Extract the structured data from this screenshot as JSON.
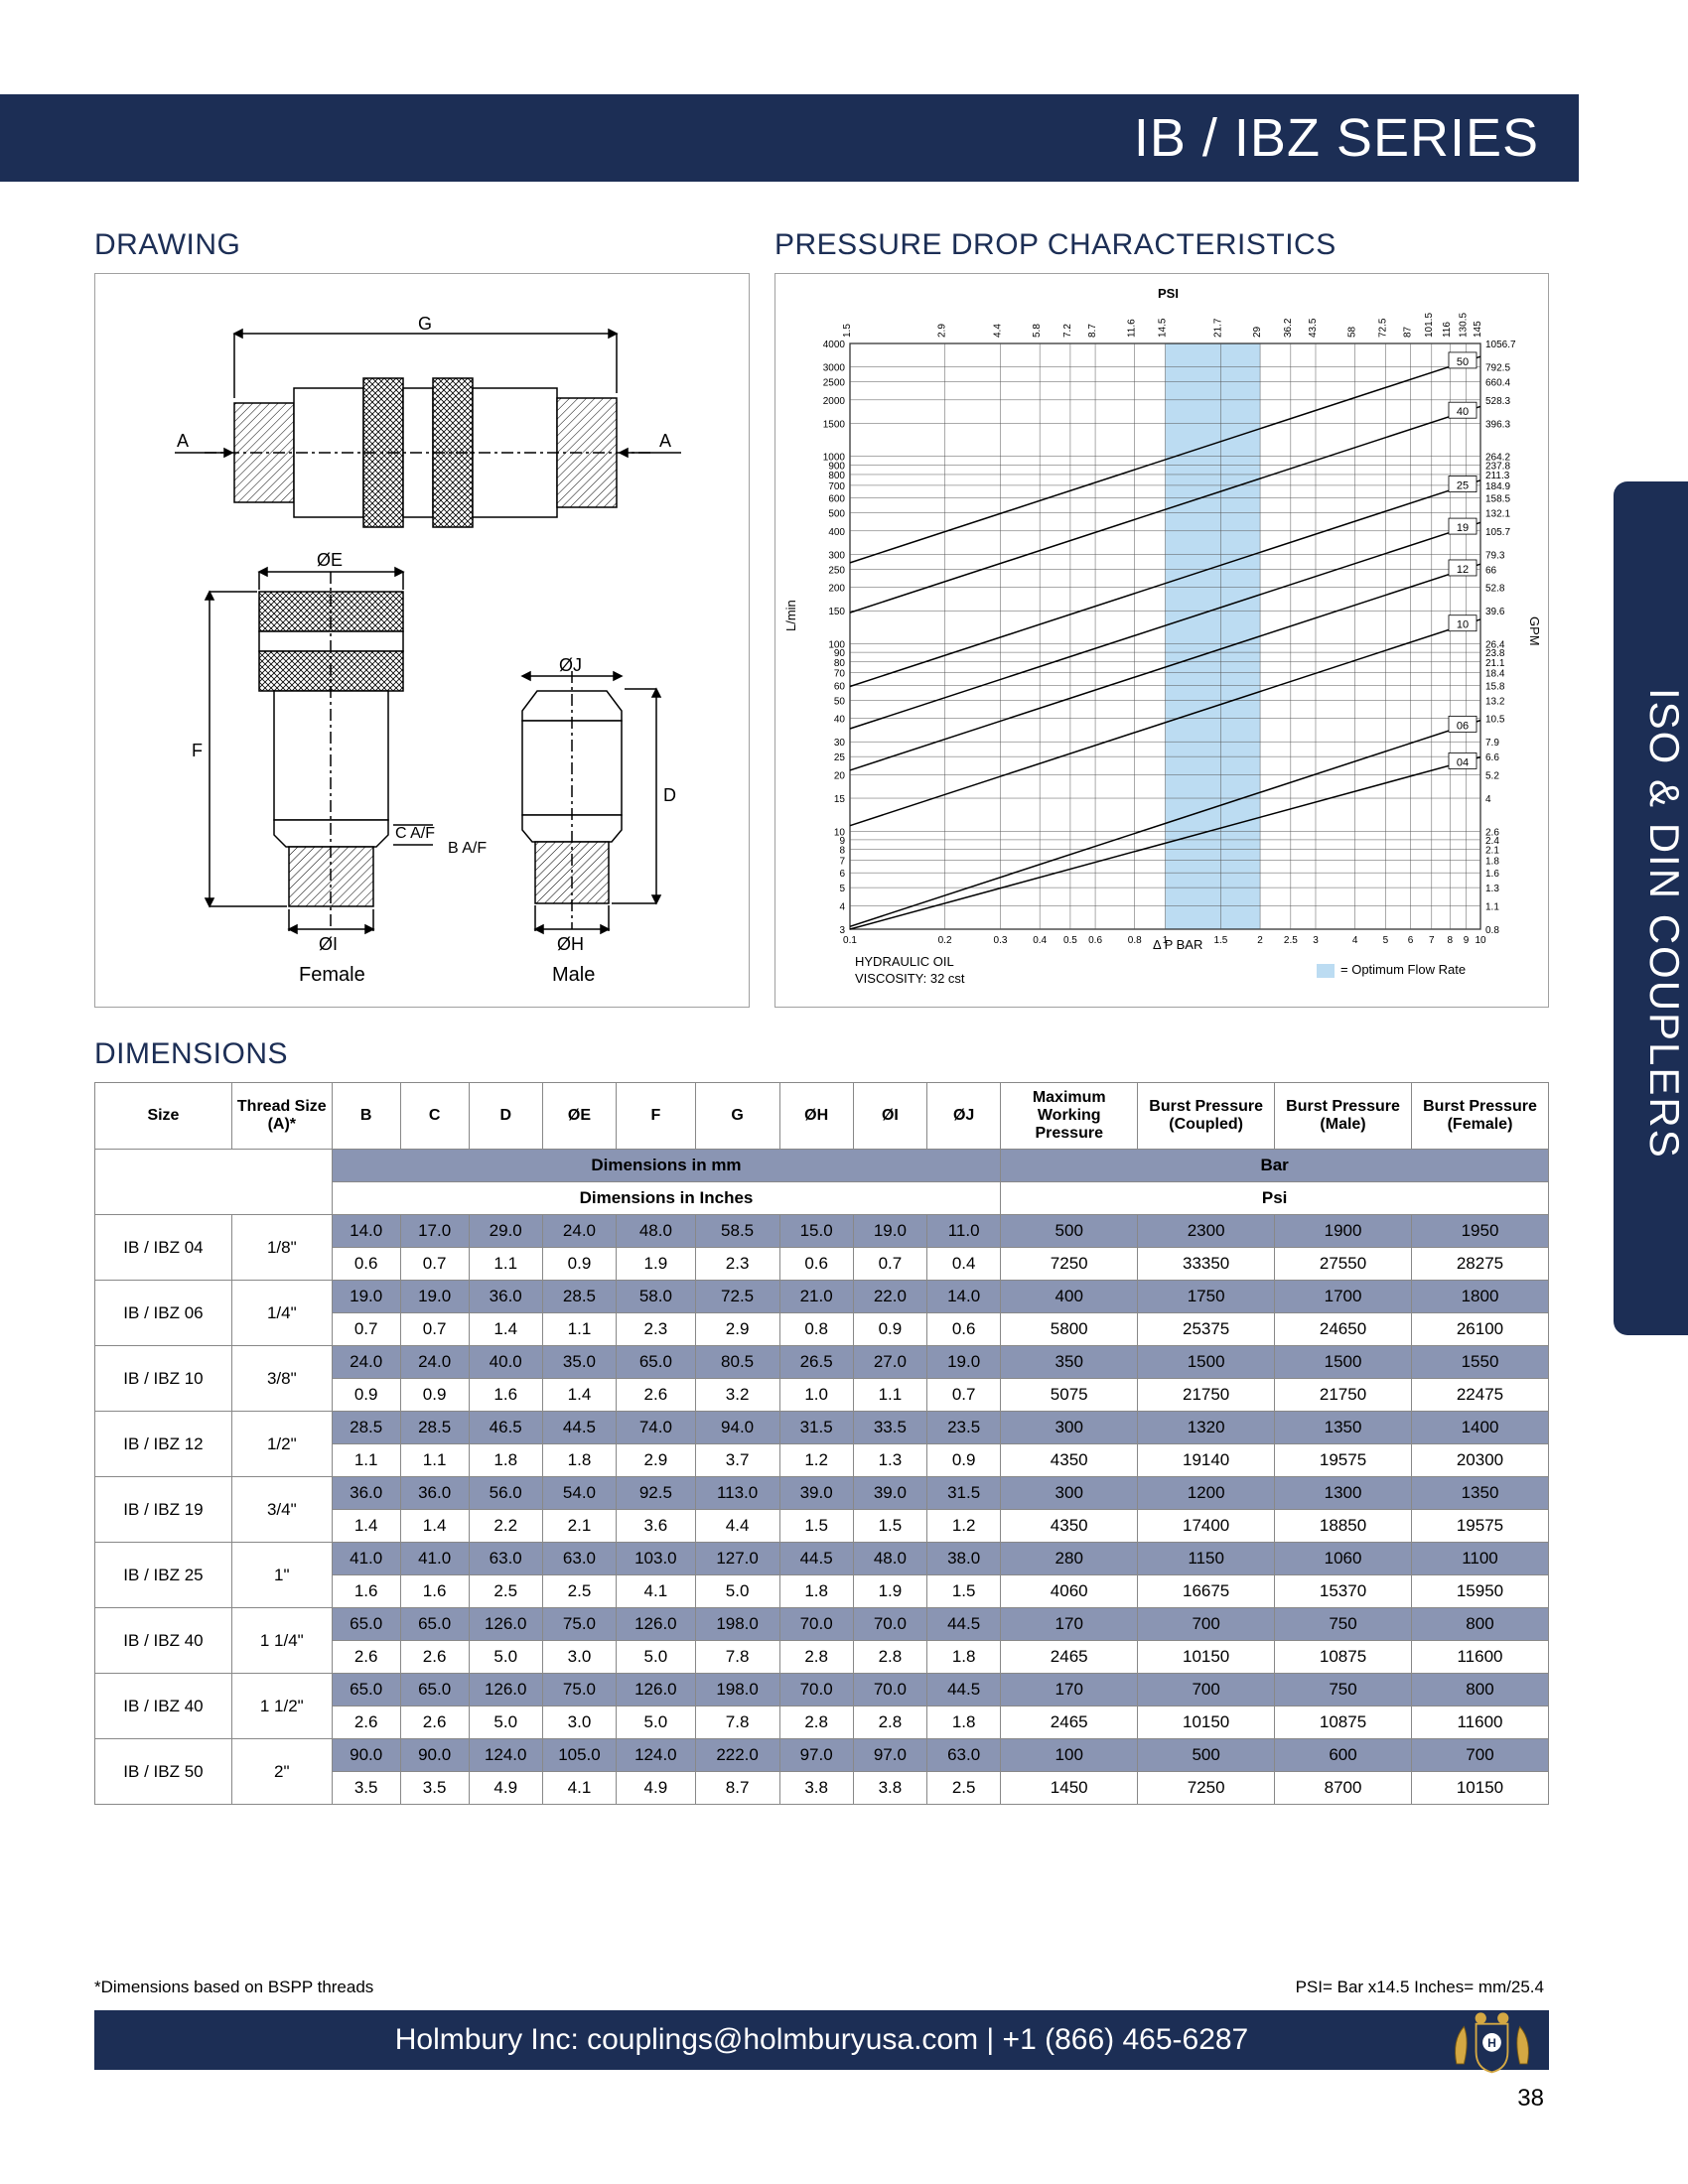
{
  "header": {
    "title": "IB / IBZ SERIES"
  },
  "side_tab": "ISO & DIN COUPLERS",
  "sections": {
    "drawing": "DRAWING",
    "chart": "PRESSURE DROP CHARACTERISTICS",
    "dimensions": "DIMENSIONS"
  },
  "drawing": {
    "labels": {
      "G": "G",
      "A_left": "A",
      "A_right": "A",
      "OE": "ØE",
      "OJ": "ØJ",
      "F": "F",
      "D": "D",
      "CAF": "C A/F",
      "BAF": "B A/F",
      "OI": "ØI",
      "OH": "ØH",
      "female": "Female",
      "male": "Male"
    }
  },
  "chart": {
    "psi_label": "PSI",
    "lmin_label": "L/min",
    "gpm_label": "GPM",
    "x_label": "Δ P  BAR",
    "note_line1": "HYDRAULIC OIL",
    "note_line2": "VISCOSITY: 32 cst",
    "legend": "= Optimum Flow Rate",
    "x_ticks": [
      "0.1",
      "0.2",
      "0.3",
      "0.4",
      "0.5",
      "0.6",
      "0.8",
      "1",
      "1.5",
      "2",
      "2.5",
      "3",
      "4",
      "5",
      "6",
      "7",
      "8",
      "9",
      "10"
    ],
    "y_left": [
      "4000",
      "3000",
      "2500",
      "2000",
      "1500",
      "1000",
      "900",
      "800",
      "700",
      "600",
      "500",
      "400",
      "300",
      "250",
      "200",
      "150",
      "100",
      "90",
      "80",
      "70",
      "60",
      "50",
      "40",
      "30",
      "25",
      "20",
      "15",
      "10",
      "9",
      "8",
      "7",
      "6",
      "5",
      "4",
      "3"
    ],
    "y_top": [
      "1.5",
      "2.9",
      "4.4",
      "5.8",
      "7.2",
      "8.7",
      "11.6",
      "14.5",
      "21.7",
      "29",
      "36.2",
      "43.5",
      "58",
      "72.5",
      "87",
      "101.5",
      "116",
      "130.5",
      "145"
    ],
    "y_right": [
      "1056.7",
      "792.5",
      "660.4",
      "528.3",
      "396.3",
      "264.2",
      "237.8",
      "211.3",
      "184.9",
      "158.5",
      "132.1",
      "105.7",
      "79.3",
      "66",
      "52.8",
      "39.6",
      "26.4",
      "23.8",
      "21.1",
      "18.4",
      "15.8",
      "13.2",
      "10.5",
      "7.9",
      "6.6",
      "5.2",
      "4",
      "2.6",
      "2.4",
      "2.1",
      "1.8",
      "1.6",
      "1.3",
      "1.1",
      "0.8"
    ],
    "line_labels": [
      "50",
      "40",
      "25",
      "19",
      "12",
      "10",
      "06",
      "04"
    ],
    "band_color": "#bcdcf2",
    "grid_color": "#555",
    "line_color": "#000"
  },
  "dimensions": {
    "columns": [
      "Size",
      "Thread Size (A)*",
      "B",
      "C",
      "D",
      "ØE",
      "F",
      "G",
      "ØH",
      "ØI",
      "ØJ",
      "Maximum Working Pressure",
      "Burst Pressure (Coupled)",
      "Burst Pressure (Male)",
      "Burst Pressure (Female)"
    ],
    "unit_row1_left": "Dimensions in mm",
    "unit_row1_right": "Bar",
    "unit_row2_left": "Dimensions in Inches",
    "unit_row2_right": "Psi",
    "rows": [
      {
        "size": "IB / IBZ 04",
        "thread": "1/8\"",
        "mm": [
          "14.0",
          "17.0",
          "29.0",
          "24.0",
          "48.0",
          "58.5",
          "15.0",
          "19.0",
          "11.0",
          "500",
          "2300",
          "1900",
          "1950"
        ],
        "in": [
          "0.6",
          "0.7",
          "1.1",
          "0.9",
          "1.9",
          "2.3",
          "0.6",
          "0.7",
          "0.4",
          "7250",
          "33350",
          "27550",
          "28275"
        ]
      },
      {
        "size": "IB / IBZ 06",
        "thread": "1/4\"",
        "mm": [
          "19.0",
          "19.0",
          "36.0",
          "28.5",
          "58.0",
          "72.5",
          "21.0",
          "22.0",
          "14.0",
          "400",
          "1750",
          "1700",
          "1800"
        ],
        "in": [
          "0.7",
          "0.7",
          "1.4",
          "1.1",
          "2.3",
          "2.9",
          "0.8",
          "0.9",
          "0.6",
          "5800",
          "25375",
          "24650",
          "26100"
        ]
      },
      {
        "size": "IB / IBZ 10",
        "thread": "3/8\"",
        "mm": [
          "24.0",
          "24.0",
          "40.0",
          "35.0",
          "65.0",
          "80.5",
          "26.5",
          "27.0",
          "19.0",
          "350",
          "1500",
          "1500",
          "1550"
        ],
        "in": [
          "0.9",
          "0.9",
          "1.6",
          "1.4",
          "2.6",
          "3.2",
          "1.0",
          "1.1",
          "0.7",
          "5075",
          "21750",
          "21750",
          "22475"
        ]
      },
      {
        "size": "IB / IBZ 12",
        "thread": "1/2\"",
        "mm": [
          "28.5",
          "28.5",
          "46.5",
          "44.5",
          "74.0",
          "94.0",
          "31.5",
          "33.5",
          "23.5",
          "300",
          "1320",
          "1350",
          "1400"
        ],
        "in": [
          "1.1",
          "1.1",
          "1.8",
          "1.8",
          "2.9",
          "3.7",
          "1.2",
          "1.3",
          "0.9",
          "4350",
          "19140",
          "19575",
          "20300"
        ]
      },
      {
        "size": "IB / IBZ 19",
        "thread": "3/4\"",
        "mm": [
          "36.0",
          "36.0",
          "56.0",
          "54.0",
          "92.5",
          "113.0",
          "39.0",
          "39.0",
          "31.5",
          "300",
          "1200",
          "1300",
          "1350"
        ],
        "in": [
          "1.4",
          "1.4",
          "2.2",
          "2.1",
          "3.6",
          "4.4",
          "1.5",
          "1.5",
          "1.2",
          "4350",
          "17400",
          "18850",
          "19575"
        ]
      },
      {
        "size": "IB / IBZ 25",
        "thread": "1\"",
        "mm": [
          "41.0",
          "41.0",
          "63.0",
          "63.0",
          "103.0",
          "127.0",
          "44.5",
          "48.0",
          "38.0",
          "280",
          "1150",
          "1060",
          "1100"
        ],
        "in": [
          "1.6",
          "1.6",
          "2.5",
          "2.5",
          "4.1",
          "5.0",
          "1.8",
          "1.9",
          "1.5",
          "4060",
          "16675",
          "15370",
          "15950"
        ]
      },
      {
        "size": "IB / IBZ 40",
        "thread": "1 1/4\"",
        "mm": [
          "65.0",
          "65.0",
          "126.0",
          "75.0",
          "126.0",
          "198.0",
          "70.0",
          "70.0",
          "44.5",
          "170",
          "700",
          "750",
          "800"
        ],
        "in": [
          "2.6",
          "2.6",
          "5.0",
          "3.0",
          "5.0",
          "7.8",
          "2.8",
          "2.8",
          "1.8",
          "2465",
          "10150",
          "10875",
          "11600"
        ]
      },
      {
        "size": "IB / IBZ 40",
        "thread": "1 1/2\"",
        "mm": [
          "65.0",
          "65.0",
          "126.0",
          "75.0",
          "126.0",
          "198.0",
          "70.0",
          "70.0",
          "44.5",
          "170",
          "700",
          "750",
          "800"
        ],
        "in": [
          "2.6",
          "2.6",
          "5.0",
          "3.0",
          "5.0",
          "7.8",
          "2.8",
          "2.8",
          "1.8",
          "2465",
          "10150",
          "10875",
          "11600"
        ]
      },
      {
        "size": "IB / IBZ 50",
        "thread": "2\"",
        "mm": [
          "90.0",
          "90.0",
          "124.0",
          "105.0",
          "124.0",
          "222.0",
          "97.0",
          "97.0",
          "63.0",
          "100",
          "500",
          "600",
          "700"
        ],
        "in": [
          "3.5",
          "3.5",
          "4.9",
          "4.1",
          "4.9",
          "8.7",
          "3.8",
          "3.8",
          "2.5",
          "1450",
          "7250",
          "8700",
          "10150"
        ]
      }
    ],
    "footnote_left": "*Dimensions based on BSPP threads",
    "footnote_right": "PSI= Bar x14.5    Inches= mm/25.4"
  },
  "footer": {
    "text": "Holmbury Inc: couplings@holmburyusa.com | +1 (866) 465-6287",
    "page": "38"
  },
  "colors": {
    "navy": "#1c2e55",
    "row_shade": "#8a95b3"
  }
}
